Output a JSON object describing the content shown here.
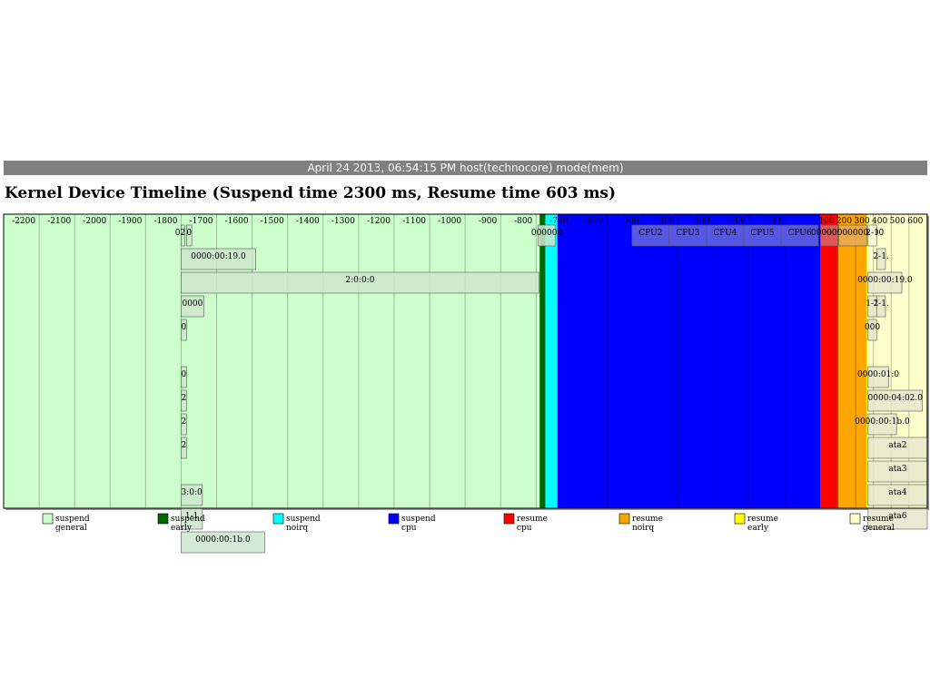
{
  "header": {
    "text": "April 24 2013, 06:54:15 PM host(technocore) mode(mem)"
  },
  "chart_data": {
    "type": "timeline",
    "title": "Kernel Device Timeline (Suspend time 2300 ms, Resume time 603 ms)",
    "xlabel": "",
    "ylabel": "",
    "axis_unit": "ms",
    "suspend_range": [
      -2300,
      0
    ],
    "resume_range": [
      0,
      603
    ],
    "grid": true,
    "legend_position": "bottom",
    "ticks": [
      {
        "label": "-2200",
        "t": -2200
      },
      {
        "label": "-2100",
        "t": -2100
      },
      {
        "label": "-2000",
        "t": -2000
      },
      {
        "label": "-1900",
        "t": -1900
      },
      {
        "label": "-1800",
        "t": -1800
      },
      {
        "label": "-1700",
        "t": -1700
      },
      {
        "label": "-1600",
        "t": -1600
      },
      {
        "label": "-1500",
        "t": -1500
      },
      {
        "label": "-1400",
        "t": -1400
      },
      {
        "label": "-1300",
        "t": -1300
      },
      {
        "label": "-1200",
        "t": -1200
      },
      {
        "label": "-1100",
        "t": -1100
      },
      {
        "label": "-1000",
        "t": -1000
      },
      {
        "label": "-900",
        "t": -900
      },
      {
        "label": "-800",
        "t": -800
      },
      {
        "label": "-700",
        "t": -700
      },
      {
        "label": "-600",
        "t": -600
      },
      {
        "label": "-500",
        "t": -500
      },
      {
        "label": "-400",
        "t": -400
      },
      {
        "label": "-300",
        "t": -300
      },
      {
        "label": "-200",
        "t": -200
      },
      {
        "label": "-100",
        "t": -100
      },
      {
        "label": "100",
        "t": 100
      },
      {
        "label": "200",
        "t": 200
      },
      {
        "label": "300",
        "t": 300
      },
      {
        "label": "400",
        "t": 400
      },
      {
        "label": "500",
        "t": 500
      },
      {
        "label": "600",
        "t": 600
      }
    ],
    "phases": [
      {
        "name": "suspend_general",
        "start": -2300,
        "end": -790,
        "color": "#ccffcc"
      },
      {
        "name": "suspend_early",
        "start": -790,
        "end": -774,
        "color": "#006600"
      },
      {
        "name": "suspend_noirq",
        "start": -774,
        "end": -740,
        "color": "#00ffff"
      },
      {
        "name": "suspend_cpu",
        "start": -740,
        "end": 0,
        "color": "#0000ff"
      },
      {
        "name": "resume_cpu",
        "start": 0,
        "end": 100,
        "color": "#ff0000"
      },
      {
        "name": "resume_noirq",
        "start": 100,
        "end": 262,
        "color": "#ffa500"
      },
      {
        "name": "resume_early",
        "start": 262,
        "end": 268,
        "color": "#ffff00"
      },
      {
        "name": "resume_general",
        "start": 268,
        "end": 603,
        "color": "#ffffcc"
      }
    ],
    "devices": [
      {
        "label": "022",
        "start": -1800,
        "end": -1790,
        "row": 0,
        "color": "#cce6cc"
      },
      {
        "label": "0",
        "start": -1785,
        "end": -1770,
        "row": 0,
        "color": "#cce6cc"
      },
      {
        "label": "0000:00:19.0",
        "start": -1800,
        "end": -1590,
        "row": 1,
        "color": "#cce6cc"
      },
      {
        "label": "2:0:0:0",
        "start": -1800,
        "end": -792,
        "row": 2,
        "color": "#cce6cc"
      },
      {
        "label": "0000",
        "start": -1800,
        "end": -1736,
        "row": 3,
        "color": "#cce6cc"
      },
      {
        "label": "0",
        "start": -1800,
        "end": -1785,
        "row": 4,
        "color": "#cce6cc"
      },
      {
        "label": "0",
        "start": -1800,
        "end": -1785,
        "row": 6,
        "color": "#cce6cc"
      },
      {
        "label": "2",
        "start": -1800,
        "end": -1785,
        "row": 7,
        "color": "#cce6cc"
      },
      {
        "label": "2",
        "start": -1800,
        "end": -1785,
        "row": 8,
        "color": "#cce6cc"
      },
      {
        "label": "2",
        "start": -1800,
        "end": -1785,
        "row": 9,
        "color": "#cce6cc"
      },
      {
        "label": "3:0:0",
        "start": -1800,
        "end": -1740,
        "row": 11,
        "color": "#cce6cc"
      },
      {
        "label": "1-1",
        "start": -1800,
        "end": -1740,
        "row": 12,
        "color": "#cce6cc"
      },
      {
        "label": "0000:00:1b.0",
        "start": -1800,
        "end": -1565,
        "row": 13,
        "color": "#cce6cc"
      },
      {
        "label": "000000",
        "start": -795,
        "end": -745,
        "row": 0,
        "color": "#cce6cc"
      },
      {
        "label": "CPU2",
        "start": -530,
        "end": -425,
        "row": 0,
        "color": "#6666e0"
      },
      {
        "label": "CPU3",
        "start": -425,
        "end": -320,
        "row": 0,
        "color": "#6666e0"
      },
      {
        "label": "CPU4",
        "start": -320,
        "end": -215,
        "row": 0,
        "color": "#6666e0"
      },
      {
        "label": "CPU5",
        "start": -215,
        "end": -110,
        "row": 0,
        "color": "#6666e0"
      },
      {
        "label": "CPU6",
        "start": -110,
        "end": -5,
        "row": 0,
        "color": "#6666e0"
      },
      {
        "label": "0000000",
        "start": 2,
        "end": 100,
        "row": 0,
        "color": "#dd6666"
      },
      {
        "label": "000000000000",
        "start": 105,
        "end": 262,
        "row": 0,
        "color": "#e6aa55"
      },
      {
        "label": "2-1",
        "start": 270,
        "end": 318,
        "row": 0,
        "color": "#ffffdd"
      },
      {
        "label": "2-1.",
        "start": 318,
        "end": 368,
        "row": 1,
        "color": "#e6e6cc"
      },
      {
        "label": "0000:00:19.0",
        "start": 270,
        "end": 460,
        "row": 2,
        "color": "#e6e6cc"
      },
      {
        "label": "1-1",
        "start": 270,
        "end": 318,
        "row": 3,
        "color": "#e6e6cc"
      },
      {
        "label": "2-1.",
        "start": 318,
        "end": 368,
        "row": 3,
        "color": "#e6e6cc"
      },
      {
        "label": "000",
        "start": 270,
        "end": 318,
        "row": 4,
        "color": "#e6e6cc"
      },
      {
        "label": "0000:01:0",
        "start": 270,
        "end": 385,
        "row": 6,
        "color": "#e6e6cc"
      },
      {
        "label": "0000:04:02.0",
        "start": 270,
        "end": 576,
        "row": 7,
        "color": "#e6e6cc"
      },
      {
        "label": "0000:00:1b.0",
        "start": 270,
        "end": 430,
        "row": 8,
        "color": "#e6e6cc"
      },
      {
        "label": "ata2",
        "start": 270,
        "end": 603,
        "row": 9,
        "color": "#e6e6cc"
      },
      {
        "label": "ata3",
        "start": 270,
        "end": 603,
        "row": 10,
        "color": "#e6e6cc"
      },
      {
        "label": "ata4",
        "start": 270,
        "end": 603,
        "row": 11,
        "color": "#e6e6cc"
      },
      {
        "label": "ata6",
        "start": 270,
        "end": 603,
        "row": 12,
        "color": "#e6e6cc"
      }
    ],
    "legend": [
      {
        "label": "suspend\ngeneral",
        "color": "#ccffcc"
      },
      {
        "label": "suspend\nearly",
        "color": "#006600"
      },
      {
        "label": "suspend\nnoirq",
        "color": "#00ffff"
      },
      {
        "label": "suspend\ncpu",
        "color": "#0000ff"
      },
      {
        "label": "resume\ncpu",
        "color": "#ff0000"
      },
      {
        "label": "resume\nnoirq",
        "color": "#ffa500"
      },
      {
        "label": "resume\nearly",
        "color": "#ffff00"
      },
      {
        "label": "resume\ngeneral",
        "color": "#ffffcc"
      }
    ]
  }
}
